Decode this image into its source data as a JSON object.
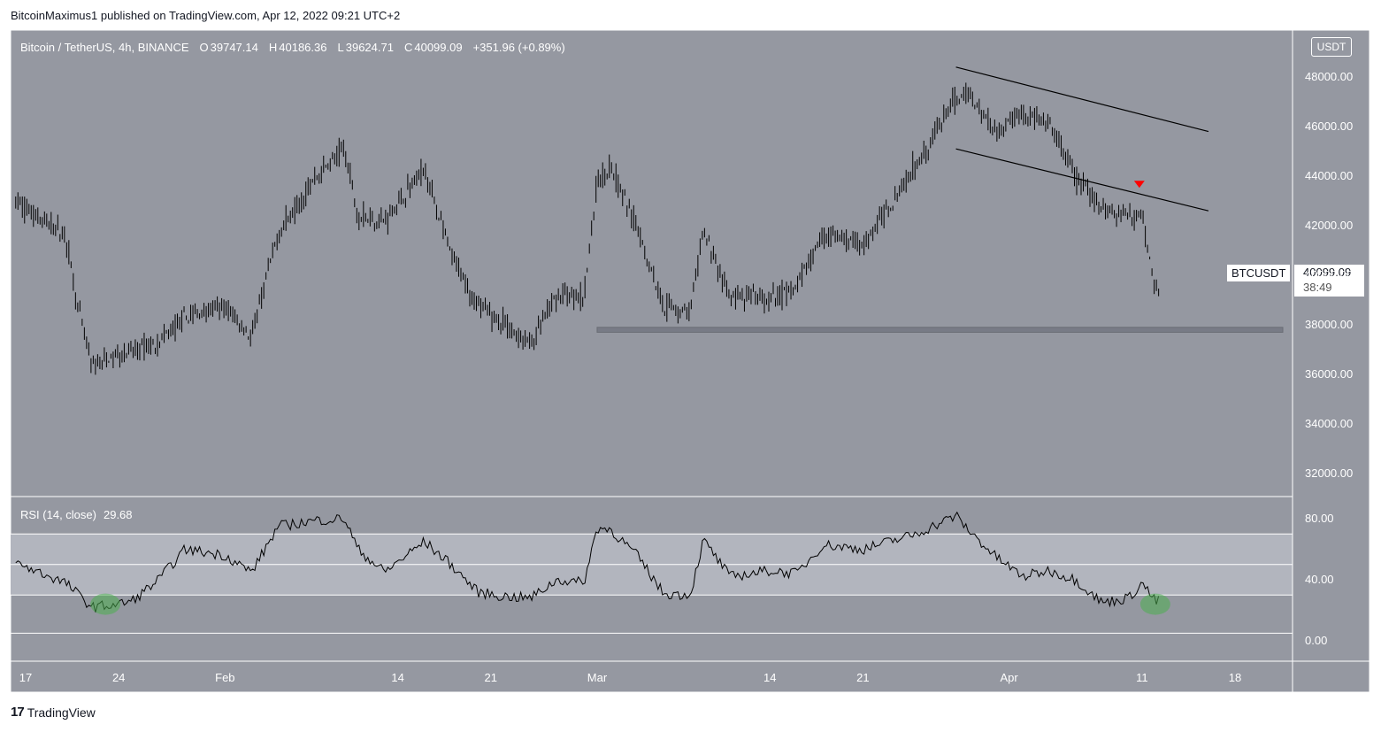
{
  "header": {
    "attribution": "BitcoinMaximus1 published on TradingView.com, Apr 12, 2022 09:21 UTC+2"
  },
  "legend": {
    "symbol": "Bitcoin / TetherUS, 4h, BINANCE",
    "o_label": "O",
    "o_value": "39747.14",
    "h_label": "H",
    "h_value": "40186.36",
    "l_label": "L",
    "l_value": "39624.71",
    "c_label": "C",
    "c_value": "40099.09",
    "change": "+351.96 (+0.89%)"
  },
  "rsi_legend": {
    "name": "RSI (14, close)",
    "value": "29.68"
  },
  "currency_badge": "USDT",
  "last_price": {
    "symbol": "BTCUSDT",
    "value": "40099.09",
    "countdown": "38:49"
  },
  "footer": {
    "logo_text": "TradingView",
    "logo_mark": "17"
  },
  "colors": {
    "pane_bg": "#9598a1",
    "rsi_band": "#b2b5be",
    "candle": "#000000",
    "marker": "#ff0000",
    "oversold": "#4caf50"
  },
  "chart_data": [
    {
      "type": "line",
      "title": "Bitcoin / TetherUS, 4h, BINANCE",
      "ylabel": "USDT",
      "ylim": [
        31000,
        49000
      ],
      "y_ticks": [
        "48000.00",
        "46000.00",
        "44000.00",
        "42000.00",
        "40000.00",
        "38000.00",
        "36000.00",
        "34000.00",
        "32000.00"
      ],
      "x_ticks": [
        "17",
        "24",
        "Feb",
        "14",
        "21",
        "Mar",
        "14",
        "21",
        "Apr",
        "11",
        "18"
      ],
      "x_tick_values": [
        "2022-01-17",
        "2022-01-24",
        "2022-02-01",
        "2022-02-14",
        "2022-02-21",
        "2022-03-01",
        "2022-03-14",
        "2022-03-21",
        "2022-04-01",
        "2022-04-11",
        "2022-04-18"
      ],
      "x": [
        "2022-01-16",
        "2022-01-18",
        "2022-01-20",
        "2022-01-21",
        "2022-01-22",
        "2022-01-24",
        "2022-01-25",
        "2022-01-27",
        "2022-01-29",
        "2022-02-01",
        "2022-02-03",
        "2022-02-05",
        "2022-02-08",
        "2022-02-10",
        "2022-02-11",
        "2022-02-13",
        "2022-02-16",
        "2022-02-18",
        "2022-02-20",
        "2022-02-22",
        "2022-02-24",
        "2022-02-26",
        "2022-02-28",
        "2022-03-01",
        "2022-03-02",
        "2022-03-04",
        "2022-03-06",
        "2022-03-08",
        "2022-03-09",
        "2022-03-11",
        "2022-03-14",
        "2022-03-16",
        "2022-03-18",
        "2022-03-21",
        "2022-03-23",
        "2022-03-25",
        "2022-03-28",
        "2022-03-29",
        "2022-03-31",
        "2022-04-02",
        "2022-04-04",
        "2022-04-06",
        "2022-04-08",
        "2022-04-10",
        "2022-04-11",
        "2022-04-12"
      ],
      "values": [
        43100,
        42300,
        41600,
        38500,
        36300,
        36800,
        36900,
        37300,
        38300,
        38700,
        37500,
        41700,
        44100,
        45100,
        42400,
        42200,
        44300,
        40800,
        38800,
        38000,
        37200,
        39200,
        39100,
        43800,
        44400,
        41900,
        38800,
        38500,
        41800,
        39100,
        39000,
        39500,
        41700,
        41200,
        42800,
        44500,
        47100,
        47300,
        45800,
        46600,
        46000,
        44000,
        42700,
        42400,
        42500,
        39300
      ],
      "support_zone": [
        37700,
        37900
      ],
      "channel_upper": [
        [
          "2022-03-28",
          48400
        ],
        [
          "2022-04-16",
          45800
        ]
      ],
      "channel_lower": [
        [
          "2022-03-28",
          45100
        ],
        [
          "2022-04-16",
          42600
        ]
      ],
      "marker": {
        "x": "2022-04-11",
        "y": 43600,
        "shape": "triangle-down"
      }
    },
    {
      "type": "line",
      "title": "RSI (14, close)",
      "ylim": [
        -10,
        95
      ],
      "y_ticks": [
        "80.00",
        "40.00",
        "0.00"
      ],
      "band": [
        30,
        70
      ],
      "midline": 50,
      "x": [
        "2022-01-16",
        "2022-01-18",
        "2022-01-20",
        "2022-01-21",
        "2022-01-22",
        "2022-01-24",
        "2022-01-25",
        "2022-01-27",
        "2022-01-29",
        "2022-02-01",
        "2022-02-03",
        "2022-02-05",
        "2022-02-08",
        "2022-02-10",
        "2022-02-11",
        "2022-02-13",
        "2022-02-16",
        "2022-02-18",
        "2022-02-20",
        "2022-02-22",
        "2022-02-24",
        "2022-02-26",
        "2022-02-28",
        "2022-03-01",
        "2022-03-02",
        "2022-03-04",
        "2022-03-06",
        "2022-03-08",
        "2022-03-09",
        "2022-03-11",
        "2022-03-14",
        "2022-03-16",
        "2022-03-18",
        "2022-03-21",
        "2022-03-23",
        "2022-03-25",
        "2022-03-28",
        "2022-03-29",
        "2022-03-31",
        "2022-04-02",
        "2022-04-04",
        "2022-04-06",
        "2022-04-08",
        "2022-04-10",
        "2022-04-11",
        "2022-04-12"
      ],
      "values": [
        52,
        45,
        38,
        30,
        22,
        24,
        26,
        40,
        60,
        56,
        45,
        75,
        79,
        80,
        60,
        45,
        65,
        50,
        32,
        29,
        28,
        40,
        38,
        74,
        73,
        56,
        31,
        30,
        66,
        42,
        46,
        44,
        63,
        60,
        65,
        70,
        82,
        72,
        55,
        42,
        46,
        40,
        25,
        28,
        38,
        26
      ],
      "oversold_marks": [
        "2022-01-23",
        "2022-04-12"
      ]
    }
  ]
}
